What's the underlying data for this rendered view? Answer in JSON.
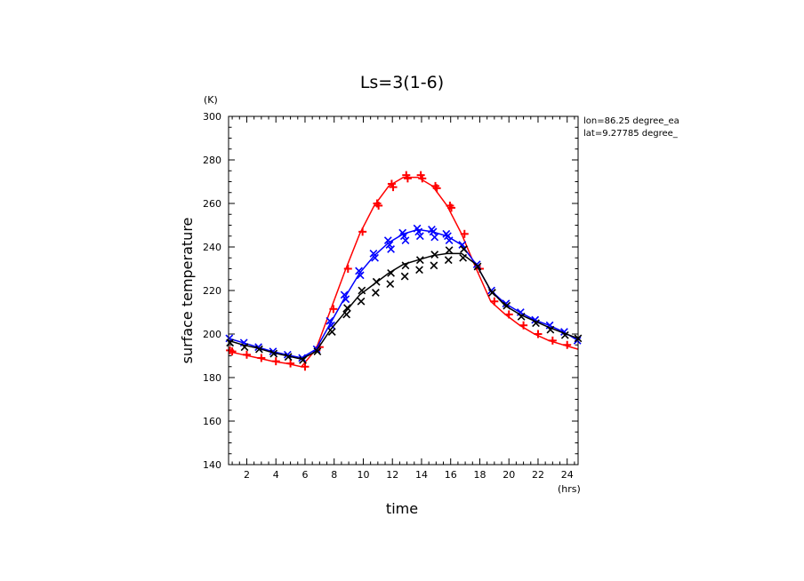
{
  "chart_data": {
    "type": "line",
    "title": "Ls=3(1-6)",
    "xlabel": "time",
    "ylabel": "surface temperature",
    "xunit": "(hrs)",
    "yunit": "(K)",
    "xlim": [
      0.75,
      24.75
    ],
    "ylim": [
      140,
      300
    ],
    "xticks": [
      2,
      4,
      6,
      8,
      10,
      12,
      14,
      16,
      18,
      20,
      22,
      24
    ],
    "yticks": [
      140,
      160,
      180,
      200,
      220,
      240,
      260,
      280,
      300
    ],
    "annotations": [
      "lon=86.25 degree_ea",
      "lat=9.27785 degree_"
    ],
    "x": [
      0.75,
      1.75,
      2.75,
      3.75,
      4.75,
      5.75,
      6.75,
      7.75,
      8.75,
      9.75,
      10.75,
      11.75,
      12.75,
      13.75,
      14.75,
      15.75,
      16.75,
      17.75,
      18.75,
      19.75,
      20.75,
      21.75,
      22.75,
      23.75,
      24.75
    ],
    "series": [
      {
        "color": "#ff0000",
        "marker": "plus",
        "values": [
          192,
          190.5,
          189,
          187.5,
          186.5,
          185,
          193,
          211,
          229,
          246,
          259,
          268,
          272,
          272,
          268,
          259,
          246,
          230,
          215,
          209,
          204,
          200,
          197,
          195,
          193
        ],
        "scatter": [
          {
            "x": 1.0,
            "y": 192
          },
          {
            "x": 2.0,
            "y": 190.5
          },
          {
            "x": 3.0,
            "y": 189
          },
          {
            "x": 4.0,
            "y": 187.5
          },
          {
            "x": 5.0,
            "y": 186.5
          },
          {
            "x": 6.0,
            "y": 185
          },
          {
            "x": 7.0,
            "y": 194
          },
          {
            "x": 7.95,
            "y": 211.5
          },
          {
            "x": 8.95,
            "y": 230
          },
          {
            "x": 9.95,
            "y": 247
          },
          {
            "x": 10.95,
            "y": 260
          },
          {
            "x": 11.95,
            "y": 269
          },
          {
            "x": 12.95,
            "y": 273
          },
          {
            "x": 13.95,
            "y": 273
          },
          {
            "x": 14.95,
            "y": 268
          },
          {
            "x": 15.95,
            "y": 259
          },
          {
            "x": 16.95,
            "y": 246
          },
          {
            "x": 18.0,
            "y": 230
          },
          {
            "x": 19.0,
            "y": 215
          },
          {
            "x": 20.0,
            "y": 209
          },
          {
            "x": 21.0,
            "y": 204
          },
          {
            "x": 22.0,
            "y": 200
          },
          {
            "x": 23.0,
            "y": 197
          },
          {
            "x": 24.0,
            "y": 195
          },
          {
            "x": 0.85,
            "y": 192.5
          },
          {
            "x": 11.05,
            "y": 259
          },
          {
            "x": 12.05,
            "y": 267.5
          },
          {
            "x": 13.05,
            "y": 271.5
          },
          {
            "x": 14.05,
            "y": 271.5
          },
          {
            "x": 15.05,
            "y": 267
          },
          {
            "x": 16.05,
            "y": 258
          }
        ]
      },
      {
        "color": "#0000ff",
        "marker": "x",
        "values": [
          198,
          196,
          194,
          192,
          190.5,
          189,
          193,
          205,
          217,
          228,
          236,
          242,
          246,
          248,
          247,
          245,
          241,
          232,
          220,
          214,
          210,
          206.5,
          204,
          201,
          197
        ],
        "scatter": [
          {
            "x": 0.8,
            "y": 198
          },
          {
            "x": 1.8,
            "y": 196
          },
          {
            "x": 2.8,
            "y": 194
          },
          {
            "x": 3.8,
            "y": 192
          },
          {
            "x": 4.8,
            "y": 190.5
          },
          {
            "x": 5.8,
            "y": 189
          },
          {
            "x": 6.8,
            "y": 193
          },
          {
            "x": 7.8,
            "y": 204
          },
          {
            "x": 8.8,
            "y": 216
          },
          {
            "x": 9.8,
            "y": 227
          },
          {
            "x": 10.8,
            "y": 235
          },
          {
            "x": 11.8,
            "y": 241
          },
          {
            "x": 12.8,
            "y": 245
          },
          {
            "x": 13.8,
            "y": 247
          },
          {
            "x": 14.8,
            "y": 247
          },
          {
            "x": 15.8,
            "y": 245
          },
          {
            "x": 16.8,
            "y": 241
          },
          {
            "x": 17.8,
            "y": 232
          },
          {
            "x": 18.8,
            "y": 220
          },
          {
            "x": 19.8,
            "y": 214
          },
          {
            "x": 20.8,
            "y": 210
          },
          {
            "x": 21.8,
            "y": 206.5
          },
          {
            "x": 22.8,
            "y": 204
          },
          {
            "x": 23.8,
            "y": 201
          },
          {
            "x": 24.7,
            "y": 197
          },
          {
            "x": 9.7,
            "y": 229
          },
          {
            "x": 10.7,
            "y": 237
          },
          {
            "x": 11.7,
            "y": 243
          },
          {
            "x": 12.7,
            "y": 246.5
          },
          {
            "x": 13.7,
            "y": 248.5
          },
          {
            "x": 14.7,
            "y": 248
          },
          {
            "x": 15.7,
            "y": 246
          },
          {
            "x": 8.7,
            "y": 218
          },
          {
            "x": 7.7,
            "y": 206
          },
          {
            "x": 11.9,
            "y": 239
          },
          {
            "x": 12.9,
            "y": 243
          },
          {
            "x": 13.9,
            "y": 245
          },
          {
            "x": 14.9,
            "y": 244.5
          },
          {
            "x": 15.9,
            "y": 243
          }
        ]
      },
      {
        "color": "#000000",
        "marker": "x",
        "values": [
          197,
          195,
          193.5,
          191.5,
          190,
          188.5,
          192,
          202,
          210,
          218,
          223,
          228,
          232,
          234,
          236,
          237,
          237,
          232,
          220,
          213,
          209,
          206,
          203,
          200.5,
          198
        ],
        "scatter": [
          {
            "x": 0.85,
            "y": 196
          },
          {
            "x": 1.85,
            "y": 194
          },
          {
            "x": 2.85,
            "y": 193
          },
          {
            "x": 3.85,
            "y": 191
          },
          {
            "x": 4.85,
            "y": 189.5
          },
          {
            "x": 5.85,
            "y": 188
          },
          {
            "x": 6.85,
            "y": 192
          },
          {
            "x": 7.85,
            "y": 201
          },
          {
            "x": 8.85,
            "y": 209
          },
          {
            "x": 9.85,
            "y": 215
          },
          {
            "x": 10.85,
            "y": 219
          },
          {
            "x": 11.85,
            "y": 223
          },
          {
            "x": 12.85,
            "y": 226.5
          },
          {
            "x": 13.85,
            "y": 229.5
          },
          {
            "x": 14.85,
            "y": 231.5
          },
          {
            "x": 15.85,
            "y": 234
          },
          {
            "x": 16.85,
            "y": 235
          },
          {
            "x": 9.9,
            "y": 220
          },
          {
            "x": 10.9,
            "y": 224
          },
          {
            "x": 11.9,
            "y": 228
          },
          {
            "x": 12.9,
            "y": 231.5
          },
          {
            "x": 13.9,
            "y": 234
          },
          {
            "x": 14.9,
            "y": 236.5
          },
          {
            "x": 15.9,
            "y": 238.5
          },
          {
            "x": 16.9,
            "y": 239
          },
          {
            "x": 8.9,
            "y": 212
          },
          {
            "x": 17.85,
            "y": 231
          },
          {
            "x": 18.85,
            "y": 219
          },
          {
            "x": 19.85,
            "y": 213
          },
          {
            "x": 20.85,
            "y": 208
          },
          {
            "x": 21.85,
            "y": 205
          },
          {
            "x": 22.85,
            "y": 202
          },
          {
            "x": 23.85,
            "y": 199.5
          },
          {
            "x": 24.75,
            "y": 198
          }
        ]
      }
    ]
  }
}
